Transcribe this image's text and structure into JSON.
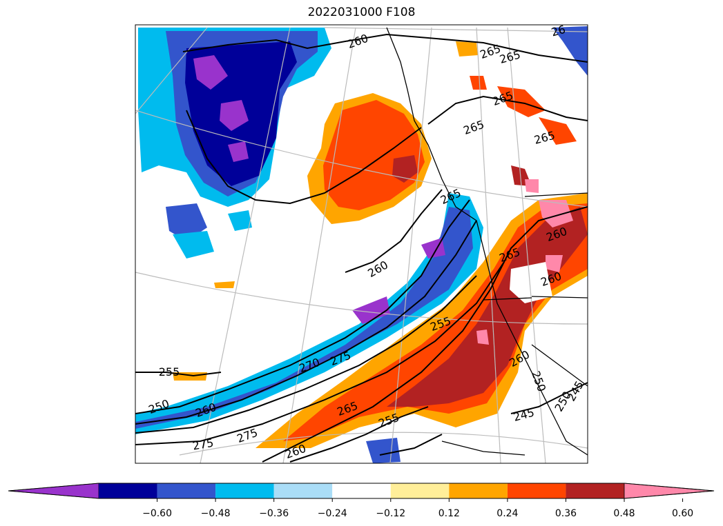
{
  "title": "2022031000 F108",
  "colorbar": {
    "colors": [
      "#9933cc",
      "#000099",
      "#3355cc",
      "#00bbee",
      "#aaddf7",
      "#ffffff",
      "#ffee99",
      "#ffa500",
      "#ff4500",
      "#b22222",
      "#ff88aa"
    ],
    "tick_labels": [
      "−0.60",
      "−0.48",
      "−0.36",
      "−0.24",
      "−0.12",
      "0.12",
      "0.24",
      "0.36",
      "0.48",
      "0.60"
    ],
    "extend": "both"
  },
  "contour_labels": [
    "265",
    "265",
    "265",
    "260",
    "26",
    "265",
    "265",
    "265",
    "260",
    "260",
    "265",
    "260",
    "255",
    "270",
    "275",
    "265",
    "250",
    "255",
    "250",
    "260",
    "275",
    "275",
    "255",
    "260",
    "250",
    "245",
    "245",
    "260"
  ],
  "colors": {
    "grid": "#bbbbbb",
    "contour": "#000000",
    "coast": "#000000"
  }
}
